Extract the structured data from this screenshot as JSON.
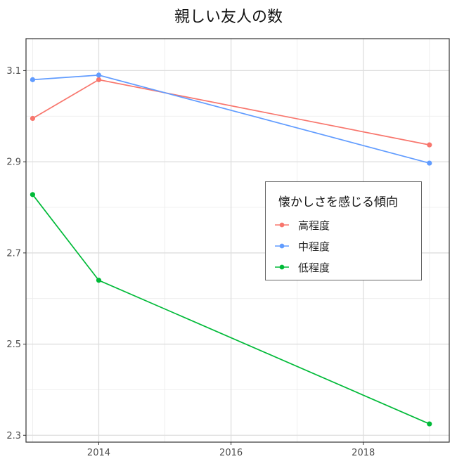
{
  "chart_data": {
    "type": "line",
    "title": "親しい友人の数",
    "xlabel": "",
    "ylabel": "",
    "xlim": [
      2012.9,
      2019.3
    ],
    "ylim": [
      2.285,
      3.17
    ],
    "x_ticks": [
      2014,
      2016,
      2018
    ],
    "y_ticks": [
      2.3,
      2.5,
      2.7,
      2.9,
      3.1
    ],
    "y_tick_labels": [
      "2.3",
      "2.5",
      "2.7",
      "2.9",
      "3.1"
    ],
    "grid": true,
    "legend_title": "懐かしさを感じる傾向",
    "legend_position": "inside-right",
    "x": [
      2013,
      2014,
      2019
    ],
    "series": [
      {
        "name": "高程度",
        "color": "#F8766D",
        "values": [
          2.995,
          3.08,
          2.937
        ]
      },
      {
        "name": "中程度",
        "color": "#619CFF",
        "values": [
          3.08,
          3.09,
          2.897
        ]
      },
      {
        "name": "低程度",
        "color": "#00BA38",
        "values": [
          2.828,
          2.64,
          2.325
        ]
      }
    ]
  }
}
